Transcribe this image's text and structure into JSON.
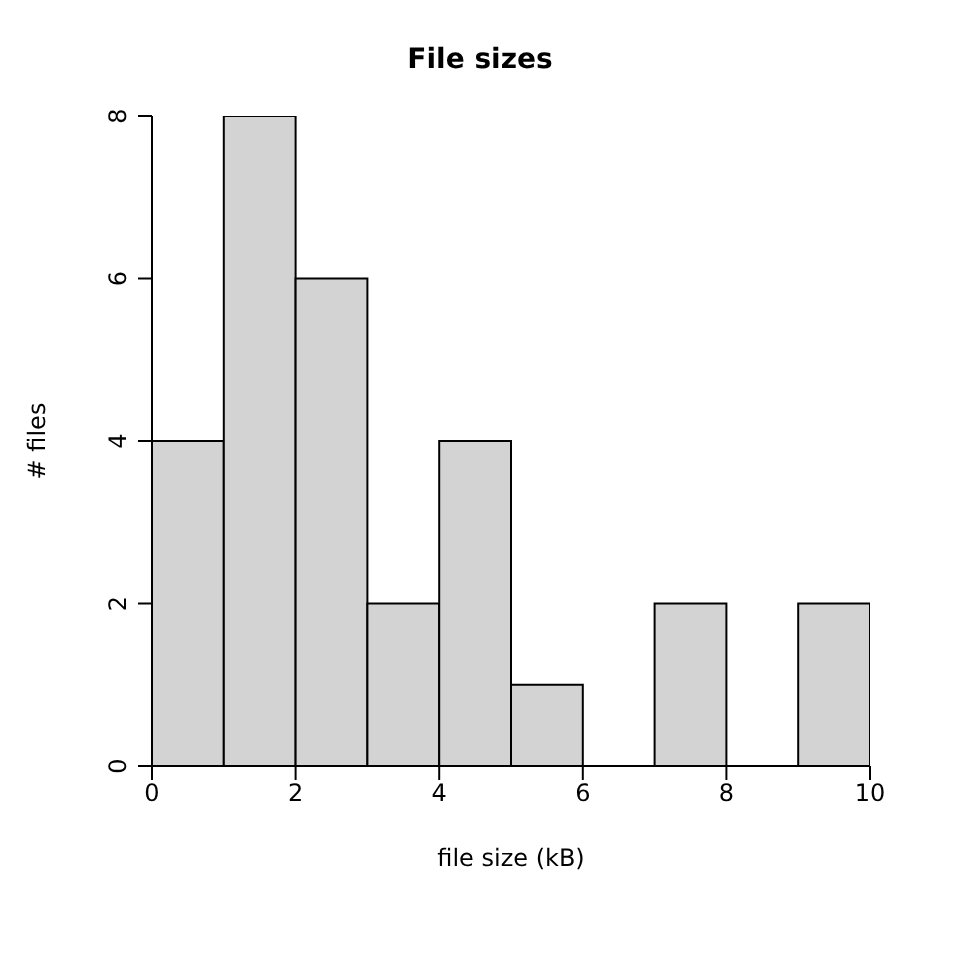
{
  "chart_data": {
    "type": "histogram",
    "title": "File sizes",
    "xlabel": "file size (kB)",
    "ylabel": "# files",
    "bins": [
      0,
      1,
      2,
      3,
      4,
      5,
      6,
      7,
      8,
      9,
      10
    ],
    "values": [
      4,
      8,
      6,
      2,
      4,
      1,
      0,
      2,
      0,
      2
    ],
    "color": "#d3d3d3",
    "xlim": [
      0,
      10
    ],
    "xticks": [
      0,
      2,
      4,
      6,
      8,
      10
    ],
    "ylim": [
      0,
      8
    ],
    "yticks": [
      0,
      2,
      4,
      6,
      8
    ]
  }
}
